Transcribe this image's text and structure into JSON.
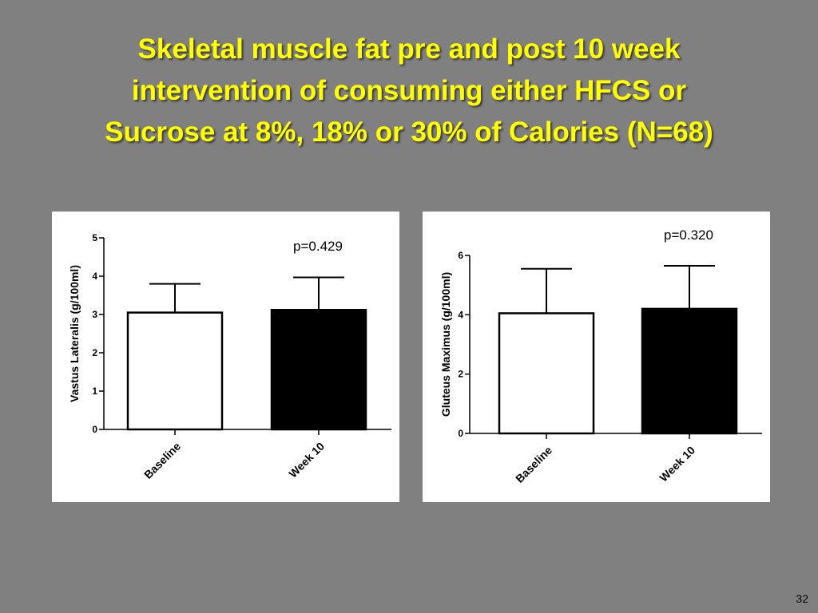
{
  "slide": {
    "title_lines": [
      "Skeletal muscle fat pre and post 10 week",
      "intervention of consuming either HFCS or",
      "Sucrose at 8%, 18% or 30% of Calories (N=68)"
    ],
    "page_number": "32"
  },
  "chart_data": [
    {
      "type": "bar",
      "categories": [
        "Baseline",
        "Week 10"
      ],
      "values": [
        3.05,
        3.12
      ],
      "error_bars": [
        0.75,
        0.85
      ],
      "bar_colors": [
        "#ffffff",
        "#000000"
      ],
      "ylabel": "Vastus Lateralis (g/100ml)",
      "ylim": [
        0,
        5
      ],
      "yticks": [
        0,
        1,
        2,
        3,
        4,
        5
      ],
      "annotation": "p=0.429",
      "grid": false
    },
    {
      "type": "bar",
      "categories": [
        "Baseline",
        "Week 10"
      ],
      "values": [
        4.05,
        4.2
      ],
      "error_bars": [
        1.5,
        1.45
      ],
      "bar_colors": [
        "#ffffff",
        "#000000"
      ],
      "ylabel": "Gluteus Maximus (g/100ml)",
      "ylim": [
        0,
        6
      ],
      "yticks": [
        0,
        2,
        4,
        6
      ],
      "annotation": "p=0.320",
      "grid": false
    }
  ]
}
